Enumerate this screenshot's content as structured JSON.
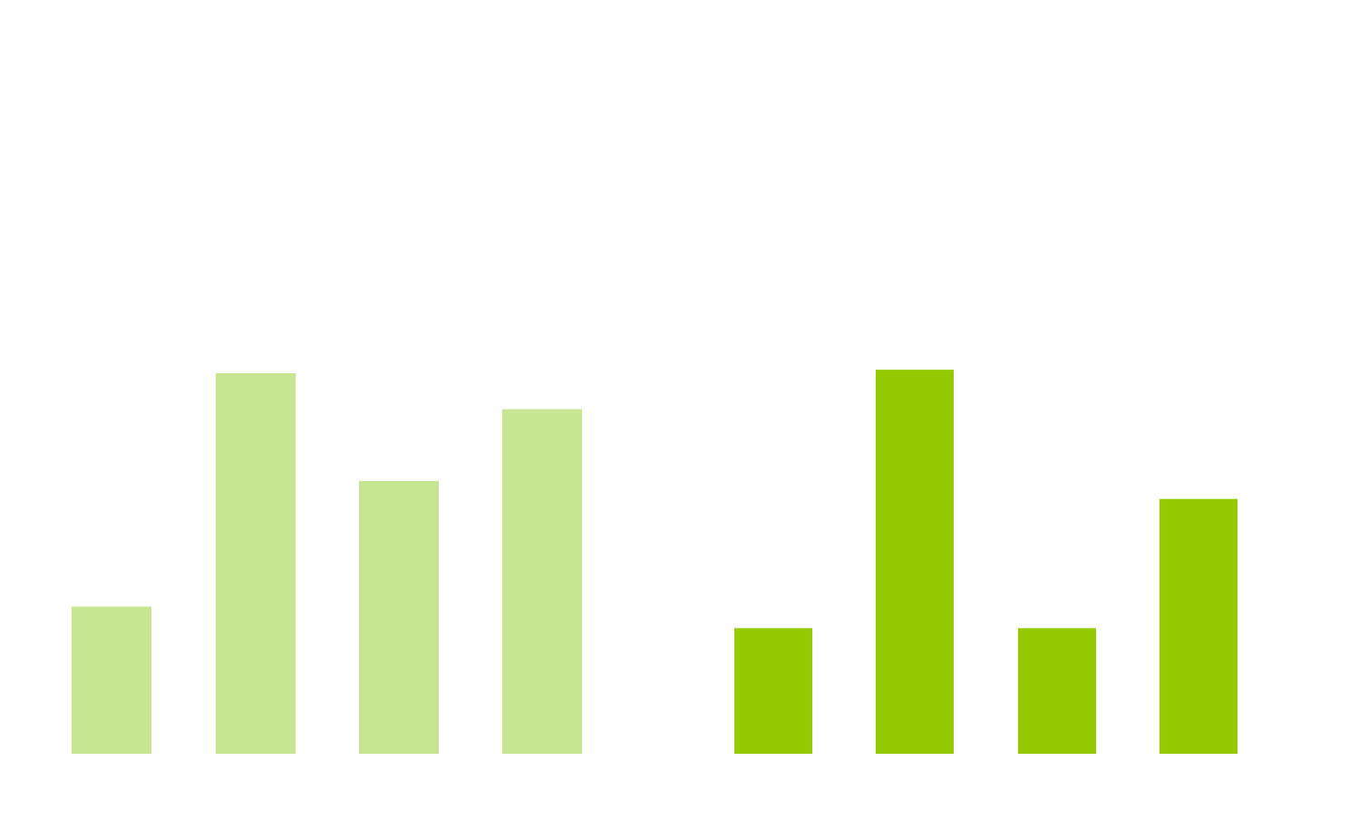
{
  "chart_data": [
    {
      "type": "bar",
      "categories": [
        "",
        "",
        "",
        ""
      ],
      "values": [
        41,
        106,
        76,
        96
      ],
      "ylim": [
        0,
        210
      ],
      "grid": false,
      "legend": "none",
      "color": "#c6e691"
    },
    {
      "type": "bar",
      "categories": [
        "",
        "",
        "",
        ""
      ],
      "values": [
        35,
        107,
        35,
        71
      ],
      "ylim": [
        0,
        210
      ],
      "grid": false,
      "legend": "none",
      "color": "#93cb00"
    }
  ]
}
